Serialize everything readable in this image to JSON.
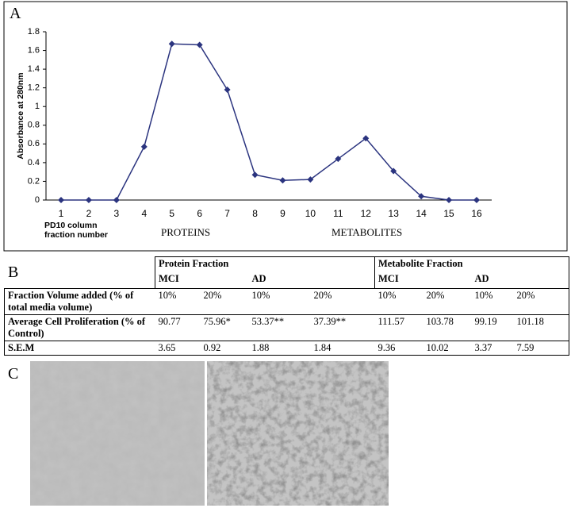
{
  "panel_labels": [
    "A",
    "B",
    "C"
  ],
  "chart_data": {
    "type": "line",
    "ylabel": "Absorbance at 280nm",
    "xlabel": [
      "PD10 column",
      "fraction number"
    ],
    "annotations": [
      "PROTEINS",
      "METABOLITES"
    ],
    "categories": [
      "1",
      "2",
      "3",
      "4",
      "5",
      "6",
      "7",
      "8",
      "9",
      "10",
      "11",
      "12",
      "13",
      "14",
      "15",
      "16"
    ],
    "series": [
      {
        "name": "Absorbance",
        "color": "#2b347f",
        "values": [
          0,
          0,
          0,
          0.57,
          1.67,
          1.66,
          1.18,
          0.27,
          0.21,
          0.22,
          0.44,
          0.66,
          0.31,
          0.04,
          0,
          0
        ]
      }
    ],
    "ylim": [
      0,
      1.8
    ],
    "yticks": [
      0,
      0.2,
      0.4,
      0.6,
      0.8,
      1,
      1.2,
      1.4,
      1.6,
      1.8
    ],
    "grid": false
  },
  "table": {
    "groups": [
      "Protein Fraction",
      "Metabolite Fraction"
    ],
    "subgroups": [
      "MCI",
      "AD",
      "MCI",
      "AD"
    ],
    "rows": [
      {
        "label": "Fraction Volume added (% of total media volume)",
        "cells": [
          "10%",
          "20%",
          "10%",
          "20%",
          "10%",
          "20%",
          "10%",
          "20%"
        ]
      },
      {
        "label": "Average Cell Proliferation (% of Control)",
        "cells": [
          "90.77",
          "75.96*",
          "53.37**",
          "37.39**",
          "111.57",
          "103.78",
          "99.19",
          "101.18"
        ]
      },
      {
        "label": "S.E.M",
        "cells": [
          "3.65",
          "0.92",
          "1.88",
          "1.84",
          "9.36",
          "10.02",
          "3.37",
          "7.59"
        ]
      }
    ]
  }
}
